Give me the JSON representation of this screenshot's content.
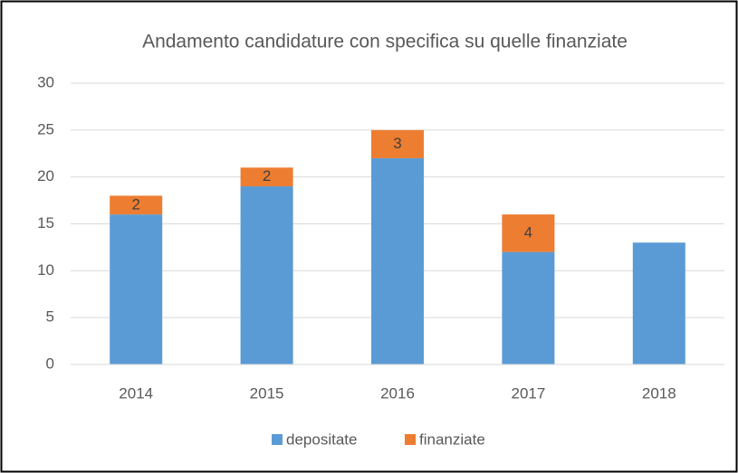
{
  "chart_data": {
    "type": "stacked_bar",
    "title": "Andamento candidature con specifica su quelle  finanziate",
    "categories": [
      "2014",
      "2015",
      "2016",
      "2017",
      "2018"
    ],
    "series": [
      {
        "name": "depositate",
        "color": "#5b9bd5",
        "values": [
          16,
          19,
          22,
          12,
          13
        ]
      },
      {
        "name": "finanziate",
        "color": "#ed7d31",
        "values": [
          2,
          2,
          3,
          4,
          null
        ]
      }
    ],
    "data_labels_series": "finanziate",
    "ylim": [
      0,
      30
    ],
    "yticks": [
      0,
      5,
      10,
      15,
      20,
      25,
      30
    ],
    "grid": true,
    "legend": "bottom"
  }
}
